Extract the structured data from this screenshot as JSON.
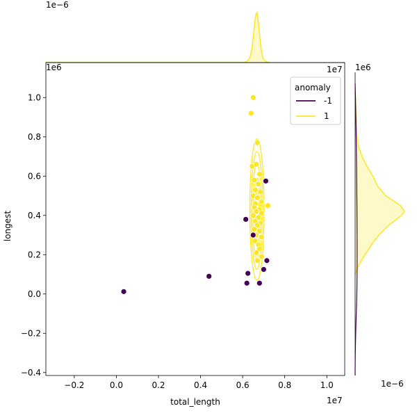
{
  "chart_data": {
    "type": "scatter",
    "title": "",
    "xlabel": "total_length",
    "ylabel": "longest",
    "x_offset_label": "1e7",
    "y_offset_label": "1e6",
    "top_marginal_offset_label": "1e−6",
    "top_marginal_right_offset_label": "1e7",
    "right_marginal_offset_label": "1e−6",
    "right_marginal_top_offset_label": "1e6",
    "xlim": [
      -0.335,
      1.085
    ],
    "ylim": [
      -0.415,
      1.178
    ],
    "xticks": [
      {
        "value": -0.2,
        "label": "−0.2"
      },
      {
        "value": 0.0,
        "label": "0.0"
      },
      {
        "value": 0.2,
        "label": "0.2"
      },
      {
        "value": 0.4,
        "label": "0.4"
      },
      {
        "value": 0.6,
        "label": "0.6"
      },
      {
        "value": 0.8,
        "label": "0.8"
      },
      {
        "value": 1.0,
        "label": "1.0"
      }
    ],
    "yticks": [
      {
        "value": -0.4,
        "label": "−0.4"
      },
      {
        "value": -0.2,
        "label": "−0.2"
      },
      {
        "value": 0.0,
        "label": "0.0"
      },
      {
        "value": 0.2,
        "label": "0.2"
      },
      {
        "value": 0.4,
        "label": "0.4"
      },
      {
        "value": 0.6,
        "label": "0.6"
      },
      {
        "value": 0.8,
        "label": "0.8"
      },
      {
        "value": 1.0,
        "label": "1.0"
      }
    ],
    "legend": {
      "title": "anomaly",
      "placement": "top-right",
      "entries": [
        {
          "label": "-1",
          "color": "#440154"
        },
        {
          "label": "1",
          "color": "#fde725"
        }
      ]
    },
    "series": [
      {
        "name": "-1",
        "color": "#440154",
        "points": [
          {
            "x": 0.035,
            "y": 0.012
          },
          {
            "x": 0.44,
            "y": 0.09
          },
          {
            "x": 0.62,
            "y": 0.055
          },
          {
            "x": 0.625,
            "y": 0.105
          },
          {
            "x": 0.68,
            "y": 0.055
          },
          {
            "x": 0.615,
            "y": 0.38
          },
          {
            "x": 0.7,
            "y": 0.125
          },
          {
            "x": 0.715,
            "y": 0.17
          },
          {
            "x": 0.71,
            "y": 0.575
          },
          {
            "x": 0.65,
            "y": 0.3
          }
        ]
      },
      {
        "name": "1",
        "color": "#fde725",
        "points": [
          {
            "x": 0.65,
            "y": 1.0
          },
          {
            "x": 0.64,
            "y": 0.92
          },
          {
            "x": 0.67,
            "y": 0.77
          },
          {
            "x": 0.645,
            "y": 0.65
          },
          {
            "x": 0.665,
            "y": 0.66
          },
          {
            "x": 0.68,
            "y": 0.61
          },
          {
            "x": 0.655,
            "y": 0.58
          },
          {
            "x": 0.675,
            "y": 0.56
          },
          {
            "x": 0.66,
            "y": 0.53
          },
          {
            "x": 0.685,
            "y": 0.52
          },
          {
            "x": 0.65,
            "y": 0.5
          },
          {
            "x": 0.67,
            "y": 0.49
          },
          {
            "x": 0.69,
            "y": 0.47
          },
          {
            "x": 0.66,
            "y": 0.46
          },
          {
            "x": 0.72,
            "y": 0.45
          },
          {
            "x": 0.655,
            "y": 0.44
          },
          {
            "x": 0.68,
            "y": 0.43
          },
          {
            "x": 0.665,
            "y": 0.42
          },
          {
            "x": 0.69,
            "y": 0.41
          },
          {
            "x": 0.65,
            "y": 0.4
          },
          {
            "x": 0.675,
            "y": 0.39
          },
          {
            "x": 0.66,
            "y": 0.37
          },
          {
            "x": 0.685,
            "y": 0.36
          },
          {
            "x": 0.67,
            "y": 0.35
          },
          {
            "x": 0.655,
            "y": 0.33
          },
          {
            "x": 0.68,
            "y": 0.32
          },
          {
            "x": 0.665,
            "y": 0.3
          },
          {
            "x": 0.69,
            "y": 0.29
          },
          {
            "x": 0.66,
            "y": 0.27
          },
          {
            "x": 0.675,
            "y": 0.25
          },
          {
            "x": 0.68,
            "y": 0.23
          },
          {
            "x": 0.665,
            "y": 0.21
          },
          {
            "x": 0.69,
            "y": 0.19
          },
          {
            "x": 0.67,
            "y": 0.17
          }
        ]
      }
    ],
    "kde_contours": [
      {
        "series": "1",
        "cx": 0.668,
        "cy": 0.43,
        "rx": 0.034,
        "ry": 0.36
      },
      {
        "series": "1",
        "cx": 0.668,
        "cy": 0.425,
        "rx": 0.028,
        "ry": 0.3
      },
      {
        "series": "1",
        "cx": 0.668,
        "cy": 0.42,
        "rx": 0.022,
        "ry": 0.24
      },
      {
        "series": "1",
        "cx": 0.668,
        "cy": 0.42,
        "rx": 0.016,
        "ry": 0.17
      },
      {
        "series": "1",
        "cx": 0.668,
        "cy": 0.42,
        "rx": 0.01,
        "ry": 0.1
      }
    ],
    "marginal_x_density": {
      "series": "1",
      "x": [
        0.6,
        0.62,
        0.635,
        0.645,
        0.655,
        0.662,
        0.668,
        0.675,
        0.685,
        0.695,
        0.71,
        0.73
      ],
      "density": [
        0.0,
        0.02,
        0.1,
        0.3,
        0.7,
        0.95,
        1.0,
        0.8,
        0.35,
        0.1,
        0.02,
        0.0
      ]
    },
    "marginal_y_density": {
      "series": "1",
      "y": [
        0.1,
        0.15,
        0.2,
        0.25,
        0.3,
        0.35,
        0.4,
        0.42,
        0.45,
        0.5,
        0.55,
        0.6,
        0.65,
        0.7,
        0.75,
        0.8,
        0.9,
        1.05
      ],
      "density": [
        0.0,
        0.08,
        0.2,
        0.33,
        0.48,
        0.68,
        0.94,
        1.0,
        0.92,
        0.62,
        0.45,
        0.36,
        0.24,
        0.14,
        0.07,
        0.04,
        0.02,
        0.0
      ]
    }
  }
}
